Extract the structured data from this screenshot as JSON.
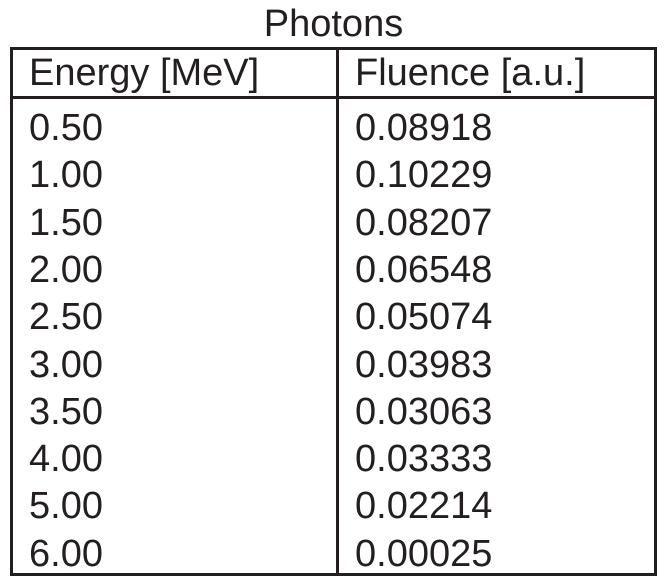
{
  "chart_data": {
    "type": "table",
    "title": "Photons",
    "columns": [
      "Energy [MeV]",
      "Fluence [a.u.]"
    ],
    "rows": [
      [
        "0.50",
        "0.08918"
      ],
      [
        "1.00",
        "0.10229"
      ],
      [
        "1.50",
        "0.08207"
      ],
      [
        "2.00",
        "0.06548"
      ],
      [
        "2.50",
        "0.05074"
      ],
      [
        "3.00",
        "0.03983"
      ],
      [
        "3.50",
        "0.03063"
      ],
      [
        "4.00",
        "0.03333"
      ],
      [
        "5.00",
        "0.02214"
      ],
      [
        "6.00",
        "0.00025"
      ]
    ]
  },
  "colors": {
    "text": "#231f20",
    "border": "#231f20",
    "background": "#ffffff"
  }
}
